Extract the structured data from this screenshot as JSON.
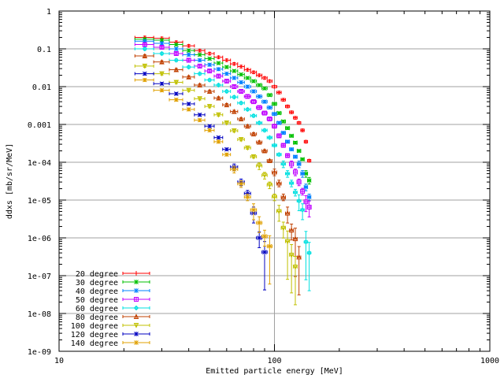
{
  "chart_data": {
    "type": "scatter",
    "xlabel": "Emitted particle energy [MeV]",
    "ylabel": "ddxs [mb/sr/MeV]",
    "x_scale": "log",
    "y_scale": "log",
    "xlim": [
      10,
      1000
    ],
    "ylim": [
      1e-09,
      1
    ],
    "x_ticks": [
      {
        "value": 10,
        "label": "10"
      },
      {
        "value": 100,
        "label": "100"
      },
      {
        "value": 1000,
        "label": "1000"
      }
    ],
    "y_ticks": [
      {
        "value": 1,
        "label": "1"
      },
      {
        "value": 0.1,
        "label": "0.1"
      },
      {
        "value": 0.01,
        "label": "0.01"
      },
      {
        "value": 0.001,
        "label": "0.001"
      },
      {
        "value": 0.0001,
        "label": "1e-04"
      },
      {
        "value": 1e-05,
        "label": "1e-05"
      },
      {
        "value": 1e-06,
        "label": "1e-06"
      },
      {
        "value": 1e-07,
        "label": "1e-07"
      },
      {
        "value": 1e-08,
        "label": "1e-08"
      },
      {
        "value": 1e-09,
        "label": "1e-09"
      }
    ],
    "grid": true,
    "legend_position": "bottom-left",
    "series": [
      {
        "name": "20 degree",
        "color": "#ff0000",
        "marker": "plus",
        "x": [
          25,
          30,
          35,
          40,
          45,
          50,
          55,
          60,
          65,
          70,
          75,
          80,
          85,
          90,
          95,
          100,
          105,
          110,
          115,
          120,
          125,
          130,
          135,
          140,
          145
        ],
        "y": [
          0.2,
          0.19,
          0.15,
          0.12,
          0.09,
          0.075,
          0.06,
          0.05,
          0.04,
          0.034,
          0.028,
          0.024,
          0.02,
          0.017,
          0.014,
          0.01,
          0.007,
          0.0045,
          0.003,
          0.0021,
          0.0015,
          0.0011,
          0.0007,
          0.00035,
          0.00011
        ]
      },
      {
        "name": "30 degree",
        "color": "#00c000",
        "marker": "x",
        "x": [
          25,
          30,
          35,
          40,
          45,
          50,
          55,
          60,
          65,
          70,
          75,
          80,
          85,
          90,
          95,
          100,
          105,
          110,
          115,
          120,
          125,
          130,
          135,
          140,
          145
        ],
        "y": [
          0.18,
          0.17,
          0.13,
          0.09,
          0.07,
          0.055,
          0.042,
          0.033,
          0.026,
          0.021,
          0.017,
          0.014,
          0.011,
          0.009,
          0.006,
          0.0035,
          0.002,
          0.0012,
          0.0008,
          0.0005,
          0.00033,
          0.0002,
          0.00012,
          5e-05,
          3.3e-05
        ]
      },
      {
        "name": "40 degree",
        "color": "#0080ff",
        "marker": "star",
        "x": [
          25,
          30,
          35,
          40,
          45,
          50,
          55,
          60,
          65,
          70,
          75,
          80,
          85,
          90,
          95,
          100,
          105,
          110,
          115,
          120,
          125,
          130,
          135,
          140,
          145
        ],
        "y": [
          0.16,
          0.14,
          0.1,
          0.07,
          0.05,
          0.038,
          0.029,
          0.022,
          0.017,
          0.013,
          0.01,
          0.0075,
          0.0055,
          0.004,
          0.0028,
          0.0019,
          0.0011,
          0.0006,
          0.00035,
          0.00022,
          0.00014,
          9e-05,
          5e-05,
          2.2e-05,
          1.2e-05
        ]
      },
      {
        "name": "50 degree",
        "color": "#c000ff",
        "marker": "box",
        "x": [
          25,
          30,
          35,
          40,
          45,
          50,
          55,
          60,
          65,
          70,
          75,
          80,
          85,
          90,
          95,
          100,
          105,
          110,
          115,
          120,
          125,
          130,
          135,
          140,
          145
        ],
        "y": [
          0.13,
          0.11,
          0.075,
          0.05,
          0.035,
          0.026,
          0.019,
          0.014,
          0.01,
          0.0075,
          0.0055,
          0.004,
          0.0028,
          0.002,
          0.0014,
          0.0009,
          0.0005,
          0.00028,
          0.00015,
          9e-05,
          5.5e-05,
          3e-05,
          1.7e-05,
          9e-06,
          6.5e-06
        ]
      },
      {
        "name": "60 degree",
        "color": "#00e0e0",
        "marker": "diamond",
        "x": [
          25,
          30,
          35,
          40,
          45,
          50,
          55,
          60,
          65,
          70,
          75,
          80,
          85,
          90,
          95,
          100,
          105,
          110,
          115,
          120,
          125,
          130,
          135,
          140,
          145
        ],
        "y": [
          0.1,
          0.075,
          0.05,
          0.033,
          0.022,
          0.015,
          0.011,
          0.0075,
          0.0053,
          0.0037,
          0.0025,
          0.0017,
          0.0011,
          0.0007,
          0.00045,
          0.00028,
          0.00016,
          9e-05,
          5e-05,
          2.8e-05,
          1.6e-05,
          9.5e-06,
          5.5e-06,
          7.8e-07,
          4e-07
        ]
      },
      {
        "name": "80 degree",
        "color": "#c04000",
        "marker": "triangle",
        "x": [
          25,
          30,
          35,
          40,
          45,
          50,
          55,
          60,
          65,
          70,
          75,
          80,
          85,
          90,
          95,
          100,
          105,
          110,
          115,
          120,
          125,
          130
        ],
        "y": [
          0.065,
          0.045,
          0.028,
          0.018,
          0.011,
          0.0075,
          0.005,
          0.0033,
          0.0022,
          0.0014,
          0.0009,
          0.00056,
          0.00034,
          0.0002,
          0.00011,
          5.5e-05,
          2.8e-05,
          1.2e-05,
          4.5e-06,
          1.6e-06,
          9.5e-07,
          3.1e-07
        ]
      },
      {
        "name": "100 degree",
        "color": "#c0c000",
        "marker": "triangle-down",
        "x": [
          25,
          30,
          35,
          40,
          45,
          50,
          55,
          60,
          65,
          70,
          75,
          80,
          85,
          90,
          95,
          100,
          105,
          110,
          115,
          120,
          125
        ],
        "y": [
          0.035,
          0.022,
          0.013,
          0.008,
          0.0048,
          0.003,
          0.0018,
          0.0011,
          0.00068,
          0.0004,
          0.00024,
          0.00014,
          8e-05,
          4.5e-05,
          2.5e-05,
          1.2e-05,
          5e-06,
          1.8e-06,
          8e-07,
          3.5e-07,
          1.7e-07
        ]
      },
      {
        "name": "120 degree",
        "color": "#0000c0",
        "marker": "x",
        "x": [
          25,
          30,
          35,
          40,
          45,
          50,
          55,
          60,
          65,
          70,
          75,
          80,
          85,
          90
        ],
        "y": [
          0.022,
          0.012,
          0.0065,
          0.0035,
          0.0018,
          0.0009,
          0.00045,
          0.00022,
          7.5e-05,
          3e-05,
          1.5e-05,
          4.5e-06,
          1e-06,
          4.2e-07
        ]
      },
      {
        "name": "140 degree",
        "color": "#e0a000",
        "marker": "star",
        "x": [
          25,
          30,
          35,
          40,
          45,
          50,
          55,
          60,
          65,
          70,
          75,
          80,
          85,
          90,
          95
        ],
        "y": [
          0.015,
          0.008,
          0.0045,
          0.0025,
          0.0013,
          0.0007,
          0.00035,
          0.00016,
          6.5e-05,
          2.7e-05,
          1.2e-05,
          5.5e-06,
          2.5e-06,
          1.1e-06,
          6e-07
        ]
      }
    ]
  }
}
